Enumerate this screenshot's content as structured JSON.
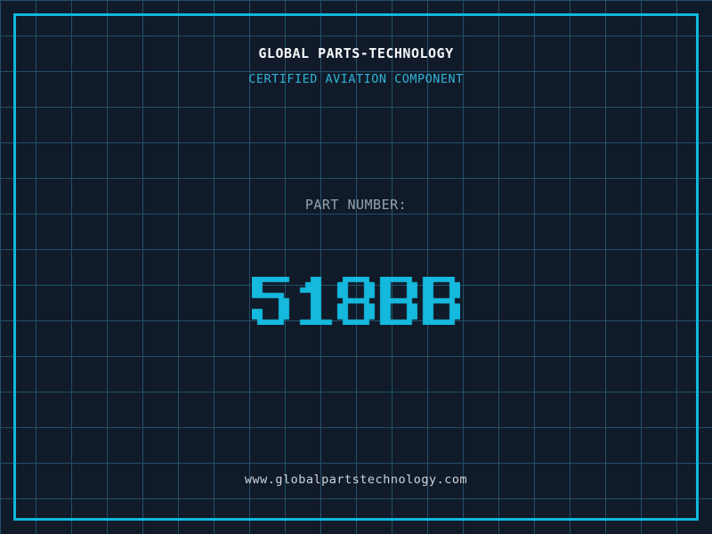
{
  "header": {
    "title": "GLOBAL PARTS-TECHNOLOGY",
    "subtitle": "CERTIFIED AVIATION COMPONENT"
  },
  "part": {
    "label": "PART NUMBER:",
    "number": "518BB"
  },
  "footer": {
    "url": "www.globalpartstechnology.com"
  },
  "colors": {
    "background": "#111a29",
    "grid_line": "#215069",
    "frame": "#0fb8dd",
    "title": "#f5f8fa",
    "subtitle": "#2fb3d5",
    "label": "#97a2ad",
    "part_number": "#14b9dd",
    "url": "#cdd5db"
  }
}
